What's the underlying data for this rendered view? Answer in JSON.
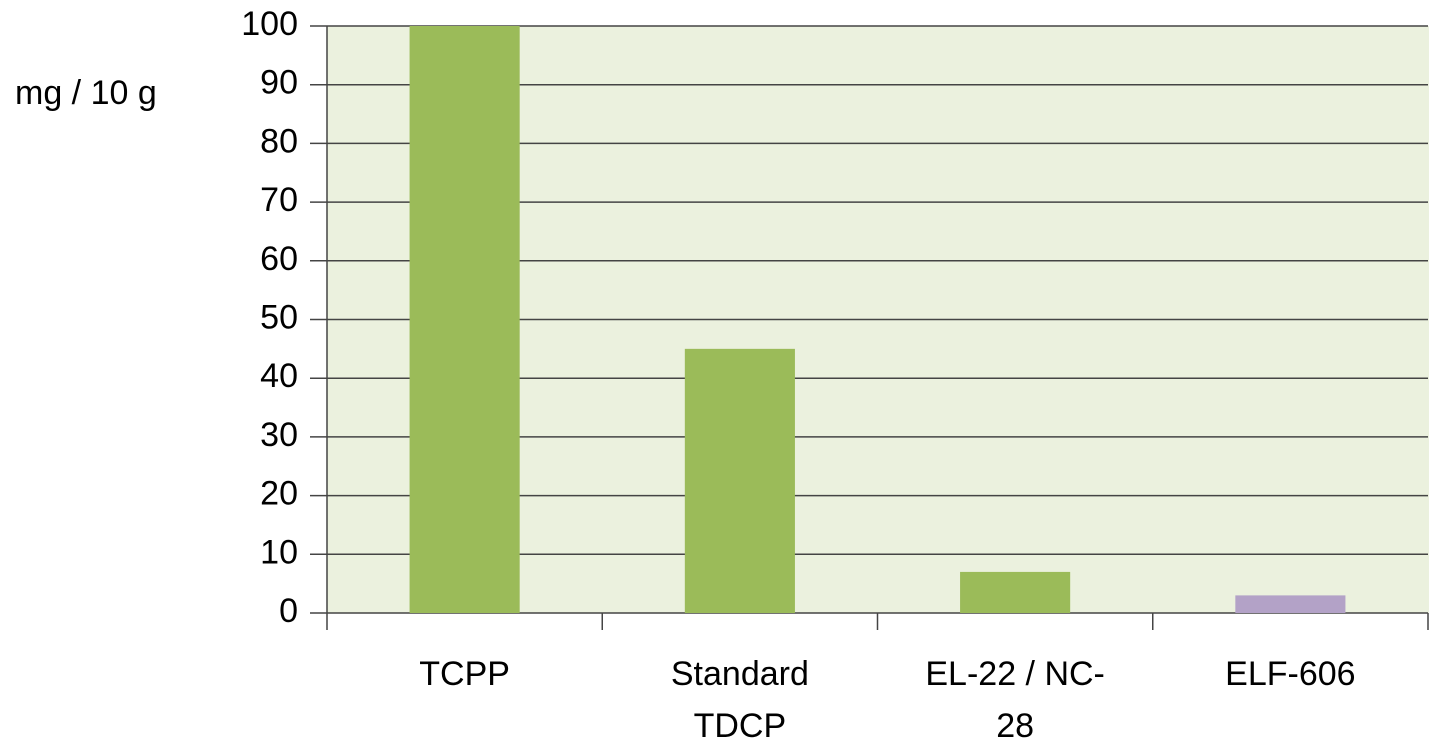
{
  "chart_data": {
    "type": "bar",
    "y_label": "mg / 10 g",
    "categories": [
      "TCPP",
      "Standard TDCP",
      "EL-22 / NC-28",
      "ELF-606"
    ],
    "values": [
      100,
      45,
      7,
      3
    ],
    "colors": [
      "#9bbb59",
      "#9bbb59",
      "#9bbb59",
      "#b3a2c7"
    ],
    "ylim": [
      0,
      100
    ],
    "yticks": [
      0,
      10,
      20,
      30,
      40,
      50,
      60,
      70,
      80,
      90,
      100
    ],
    "grid": true
  }
}
